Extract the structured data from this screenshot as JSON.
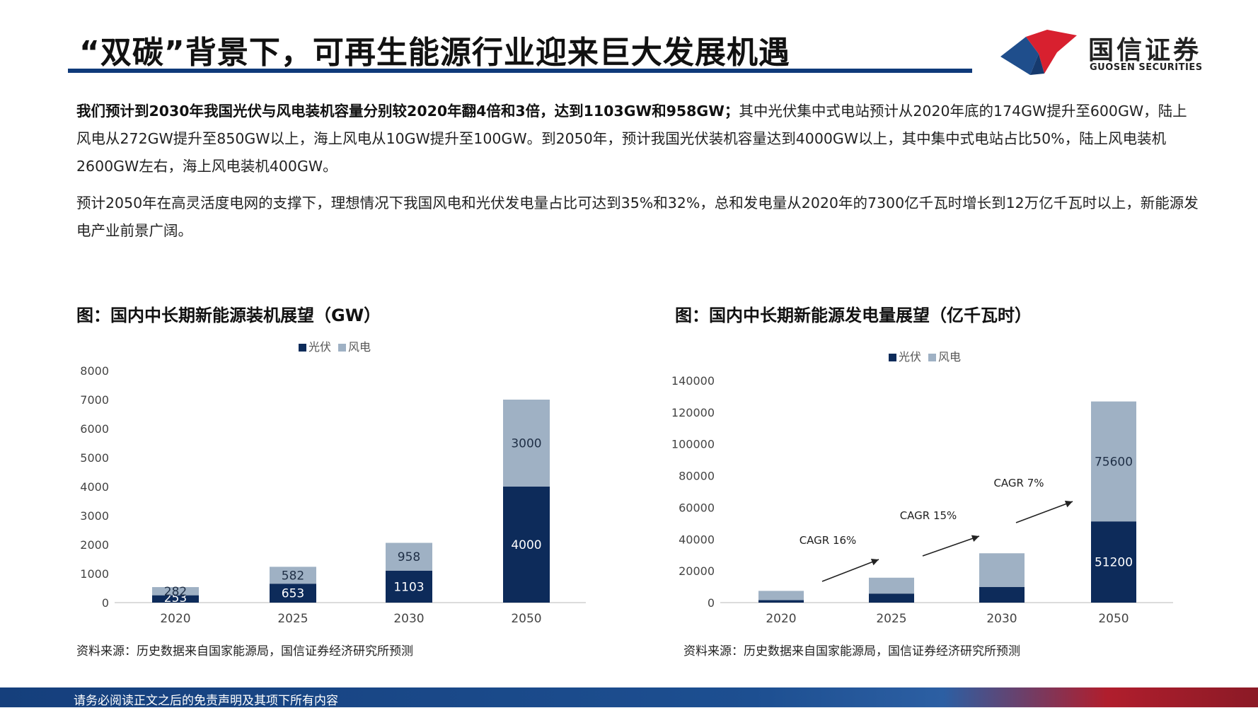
{
  "header": {
    "title": "“双碳”背景下，可再生能源行业迎来巨大发展机遇",
    "logo_cn": "国信证券",
    "logo_en": "GUOSEN SECURITIES"
  },
  "paragraphs": {
    "p1_bold": "我们预计到2030年我国光伏与风电装机容量分别较2020年翻4倍和3倍，达到1103GW和958GW；",
    "p1_rest": "其中光伏集中式电站预计从2020年底的174GW提升至600GW，陆上风电从272GW提升至850GW以上，海上风电从10GW提升至100GW。到2050年，预计我国光伏装机容量达到4000GW以上，其中集中式电站占比50%，陆上风电装机2600GW左右，海上风电装机400GW。",
    "p2": "预计2050年在高灵活度电网的支撑下，理想情况下我国风电和光伏发电量占比可达到35%和32%，总和发电量从2020年的7300亿千瓦时增长到12万亿千瓦时以上，新能源发电产业前景广阔。"
  },
  "colors": {
    "solar": "#0d2b5a",
    "wind": "#9fb1c4",
    "title_rule": "#0f3a7a"
  },
  "chart_data": [
    {
      "type": "bar",
      "stacked": true,
      "title": "图：国内中长期新能源装机展望（GW）",
      "categories": [
        "2020",
        "2025",
        "2030",
        "2050"
      ],
      "series": [
        {
          "name": "光伏",
          "values": [
            253,
            653,
            1103,
            4000
          ],
          "labels": [
            "253",
            "653",
            "1103",
            "4000"
          ]
        },
        {
          "name": "风电",
          "values": [
            282,
            582,
            958,
            3000
          ],
          "labels": [
            "282",
            "582",
            "958",
            "3000"
          ]
        }
      ],
      "ylim": [
        0,
        8000
      ],
      "yticks": [
        0,
        1000,
        2000,
        3000,
        4000,
        5000,
        6000,
        7000,
        8000
      ],
      "legend_position": "top-center",
      "source": "资料来源：历史数据来自国家能源局，国信证券经济研究所预测"
    },
    {
      "type": "bar",
      "stacked": true,
      "title": "图：国内中长期新能源发电量展望（亿千瓦时）",
      "categories": [
        "2020",
        "2025",
        "2030",
        "2050"
      ],
      "series": [
        {
          "name": "光伏",
          "values": [
            1600,
            5700,
            9900,
            51200
          ],
          "labels": [
            "",
            "",
            "",
            "51200"
          ]
        },
        {
          "name": "风电",
          "values": [
            5800,
            10000,
            21200,
            75600
          ],
          "labels": [
            "",
            "",
            "",
            "75600"
          ]
        }
      ],
      "ylim": [
        0,
        140000
      ],
      "yticks": [
        0,
        20000,
        40000,
        60000,
        80000,
        100000,
        120000,
        140000
      ],
      "legend_position": "top-center",
      "annotations": [
        {
          "text": "CAGR 16%",
          "from": "2020",
          "to": "2025"
        },
        {
          "text": "CAGR 15%",
          "from": "2025",
          "to": "2030"
        },
        {
          "text": "CAGR 7%",
          "from": "2030",
          "to": "2050"
        }
      ],
      "source": "资料来源：历史数据来自国家能源局，国信证券经济研究所预测"
    }
  ],
  "footer": {
    "disclaimer": "请务必阅读正文之后的免责声明及其项下所有内容"
  }
}
